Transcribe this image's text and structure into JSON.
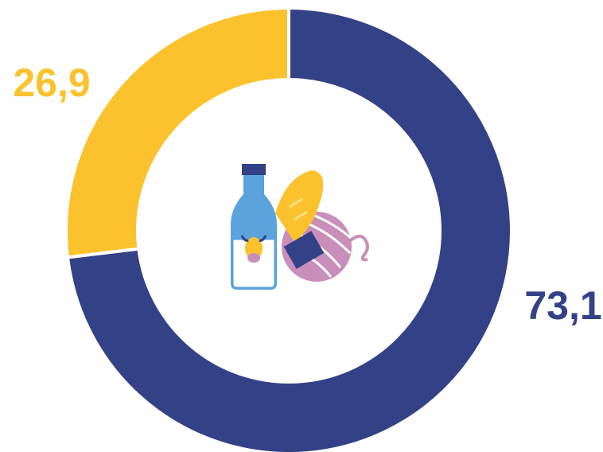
{
  "chart_data": {
    "type": "donut",
    "values": [
      73.1,
      26.9
    ],
    "value_labels": [
      "73,1",
      "26,9"
    ],
    "colors": [
      "#334187",
      "#fbc22d"
    ]
  }
}
